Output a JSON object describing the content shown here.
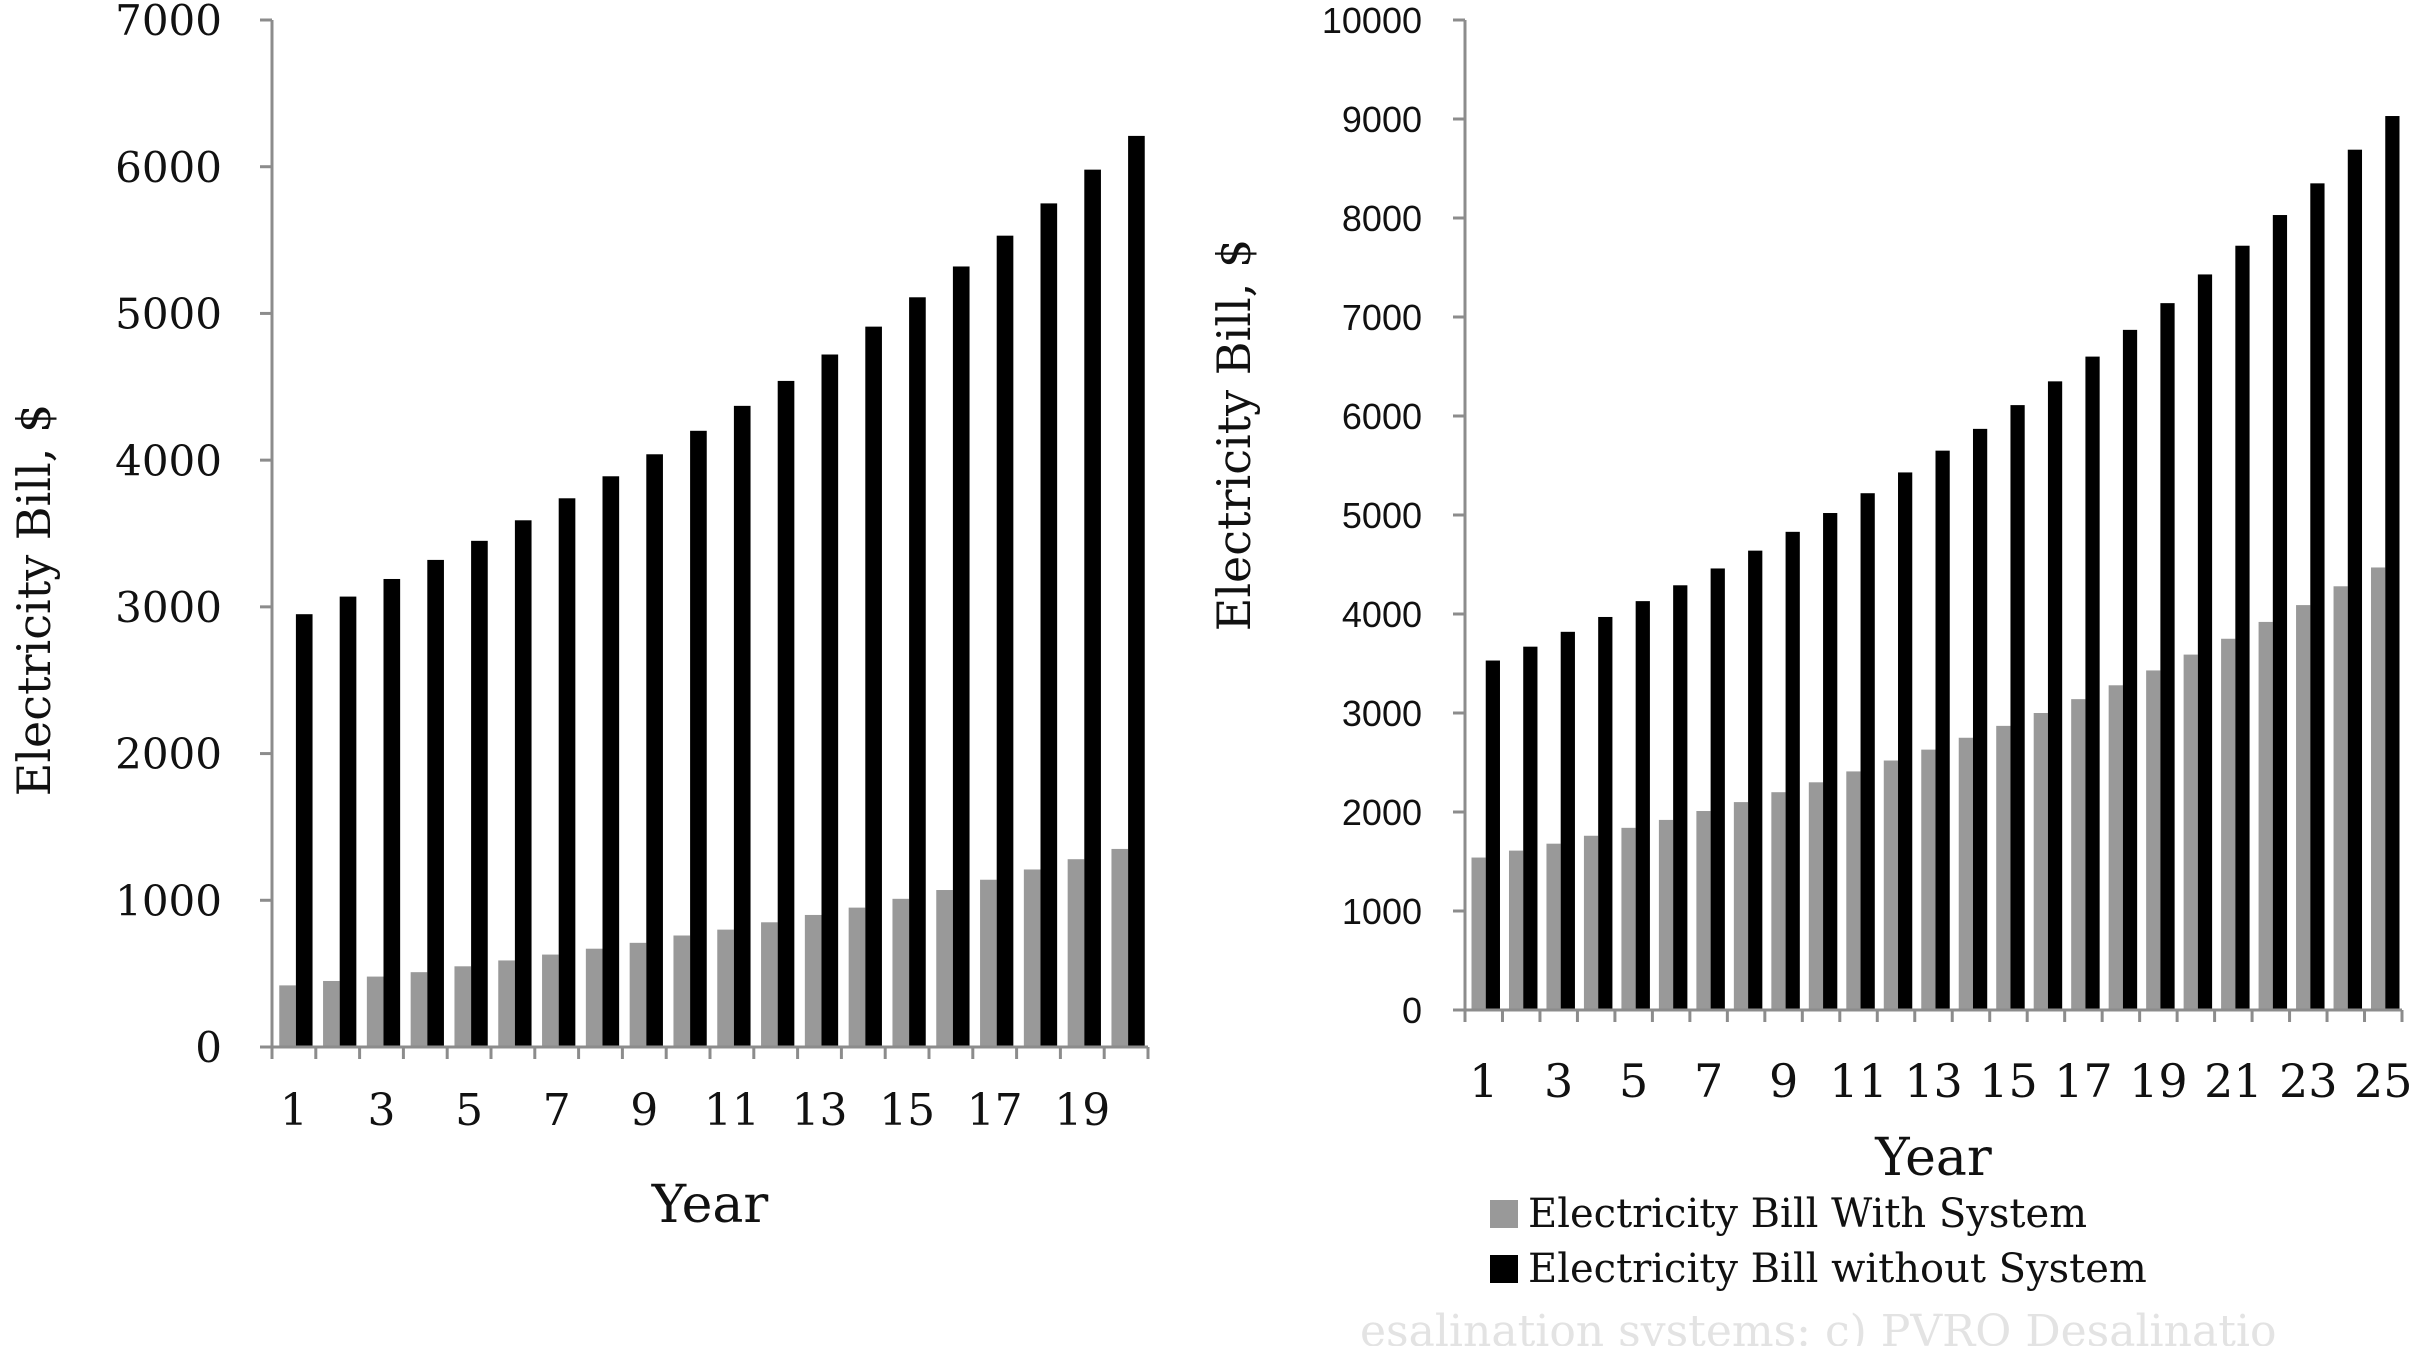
{
  "chart_data": [
    {
      "type": "bar",
      "xlabel": "Year",
      "ylabel": "Electricity Bill,  $",
      "ylim": [
        0,
        7000
      ],
      "y_ticks": [
        "0",
        "1000",
        "2000",
        "3000",
        "4000",
        "5000",
        "6000",
        "7000"
      ],
      "categories": [
        "1",
        "2",
        "3",
        "4",
        "5",
        "6",
        "7",
        "8",
        "9",
        "10",
        "11",
        "12",
        "13",
        "14",
        "15",
        "16",
        "17",
        "18",
        "19",
        "20"
      ],
      "x_tick_labels": [
        "1",
        "3",
        "5",
        "7",
        "9",
        "11",
        "13",
        "15",
        "17",
        "19"
      ],
      "grid": false,
      "series": [
        {
          "name": "Electricity Bill With System",
          "color": "#999999",
          "values": [
            420,
            450,
            480,
            510,
            550,
            590,
            630,
            670,
            710,
            760,
            800,
            850,
            900,
            950,
            1010,
            1070,
            1140,
            1210,
            1280,
            1350
          ]
        },
        {
          "name": "Electricity Bill without System",
          "color": "#000000",
          "values": [
            2950,
            3070,
            3190,
            3320,
            3450,
            3590,
            3740,
            3890,
            4040,
            4200,
            4370,
            4540,
            4720,
            4910,
            5110,
            5320,
            5530,
            5750,
            5980,
            6210
          ]
        }
      ]
    },
    {
      "type": "bar",
      "xlabel": "Year",
      "ylabel": "Electricity Bill,  $",
      "ylim": [
        0,
        10000
      ],
      "y_ticks": [
        "0",
        "1000",
        "2000",
        "3000",
        "4000",
        "5000",
        "6000",
        "7000",
        "8000",
        "9000",
        "10000"
      ],
      "categories": [
        "1",
        "2",
        "3",
        "4",
        "5",
        "6",
        "7",
        "8",
        "9",
        "10",
        "11",
        "12",
        "13",
        "14",
        "15",
        "16",
        "17",
        "18",
        "19",
        "20",
        "21",
        "22",
        "23",
        "24",
        "25"
      ],
      "x_tick_labels": [
        "1",
        "3",
        "5",
        "7",
        "9",
        "11",
        "13",
        "15",
        "17",
        "19",
        "21",
        "23",
        "25"
      ],
      "grid": false,
      "legend": "bottom",
      "series": [
        {
          "name": "Electricity Bill With System",
          "color": "#999999",
          "values": [
            1540,
            1610,
            1680,
            1760,
            1840,
            1920,
            2010,
            2100,
            2200,
            2300,
            2410,
            2520,
            2630,
            2750,
            2870,
            3000,
            3140,
            3280,
            3430,
            3590,
            3750,
            3920,
            4090,
            4280,
            4470
          ]
        },
        {
          "name": "Electricity Bill without System",
          "color": "#000000",
          "values": [
            3530,
            3670,
            3820,
            3970,
            4130,
            4290,
            4460,
            4640,
            4830,
            5020,
            5220,
            5430,
            5650,
            5870,
            6110,
            6350,
            6600,
            6870,
            7140,
            7430,
            7720,
            8030,
            8350,
            8690,
            9030
          ]
        }
      ]
    }
  ],
  "caption_fragment": "esalination systems: c) PVRO Desalinatio"
}
